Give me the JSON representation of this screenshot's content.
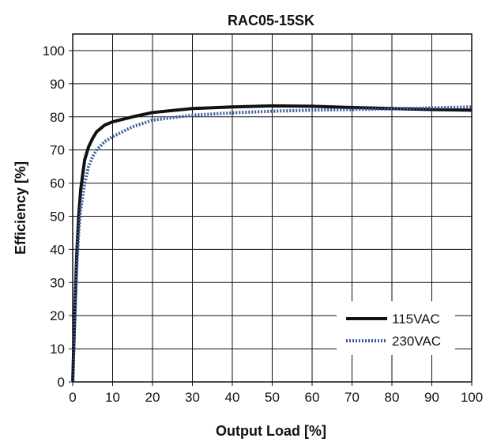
{
  "chart_data": {
    "type": "line",
    "title": "RAC05-15SK",
    "xlabel": "Output Load [%]",
    "ylabel": "Efficiency [%]",
    "xlim": [
      0,
      100
    ],
    "ylim": [
      0,
      105
    ],
    "xticks": [
      0,
      10,
      20,
      30,
      40,
      50,
      60,
      70,
      80,
      90,
      100
    ],
    "yticks": [
      0,
      10,
      20,
      30,
      40,
      50,
      60,
      70,
      80,
      90,
      100
    ],
    "grid": true,
    "legend_position": "bottom-right",
    "series": [
      {
        "name": "115VAC",
        "color": "#111111",
        "style": "solid",
        "x": [
          0,
          0.5,
          1,
          1.5,
          2,
          3,
          4,
          5,
          6,
          8,
          10,
          15,
          20,
          30,
          40,
          50,
          60,
          70,
          80,
          90,
          100
        ],
        "y": [
          0,
          20,
          38,
          50,
          58,
          67,
          71,
          73.5,
          75.5,
          77.5,
          78.5,
          80,
          81.3,
          82.5,
          83,
          83.3,
          83.2,
          82.8,
          82.5,
          82.2,
          82
        ]
      },
      {
        "name": "230VAC",
        "color": "#3a5a9c",
        "style": "dotted",
        "x": [
          0,
          0.5,
          1,
          1.5,
          2,
          3,
          4,
          5,
          6,
          8,
          10,
          15,
          20,
          30,
          40,
          50,
          60,
          70,
          80,
          90,
          100
        ],
        "y": [
          0,
          18,
          34,
          45,
          52,
          60,
          65,
          68,
          70,
          72.5,
          74,
          77,
          79,
          80.5,
          81.2,
          81.7,
          82,
          82.2,
          82.4,
          82.7,
          83
        ]
      }
    ]
  }
}
